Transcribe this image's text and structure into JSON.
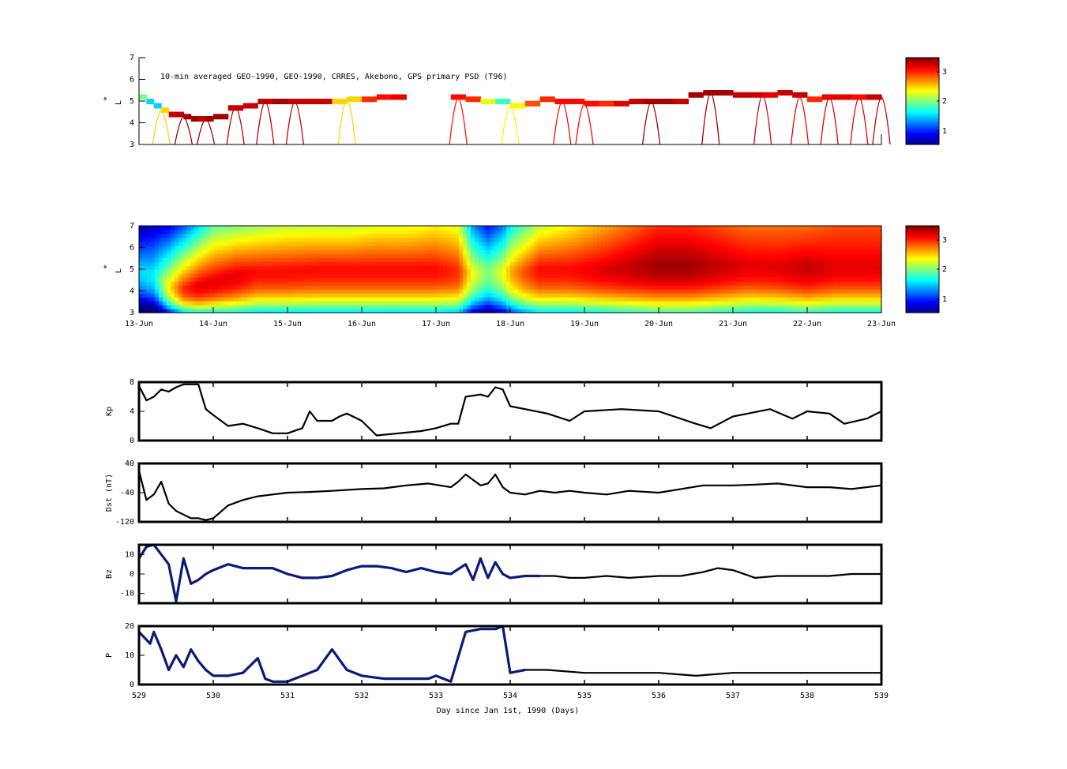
{
  "figure": {
    "title": "10-min averaged GEO-1990, GEO-1990, CRRES, Akebono, GPS  primary PSD (T96)",
    "xlabel": "Day since Jan 1st, 1990 (Days)",
    "date_ticks": [
      "13-Jun",
      "14-Jun",
      "15-Jun",
      "16-Jun",
      "17-Jun",
      "18-Jun",
      "19-Jun",
      "20-Jun",
      "21-Jun",
      "22-Jun",
      "23-Jun"
    ],
    "day_ticks": [
      "529",
      "530",
      "531",
      "532",
      "533",
      "534",
      "535",
      "536",
      "537",
      "538",
      "539"
    ],
    "colorbar_ticks": [
      "1",
      "2",
      "3"
    ],
    "colors": {
      "line": "#000000",
      "measured": "#0a1a7a"
    }
  },
  "chart_data": [
    {
      "type": "heatmap",
      "name": "observed-psd",
      "ylabel": "L*",
      "ylabel_parts": [
        "*",
        "L"
      ],
      "ylim": [
        3,
        7
      ],
      "yticks": [
        "3",
        "4",
        "5",
        "6",
        "7"
      ],
      "x": [
        529,
        539
      ],
      "colorbar_range": [
        0.5,
        3.5
      ],
      "observed_track": {
        "day": [
          529.0,
          529.1,
          529.2,
          529.3,
          529.4,
          529.5,
          529.6,
          529.7,
          529.8,
          529.9,
          530.0,
          530.2,
          530.4,
          530.6,
          530.8,
          531.0,
          531.2,
          531.4,
          531.6,
          531.8,
          532.0,
          532.2,
          532.4,
          532.6,
          532.8,
          533.0,
          533.2,
          533.4,
          533.6,
          533.8,
          534.0,
          534.2,
          534.4,
          534.6,
          534.8,
          535.0,
          535.2,
          535.4,
          535.6,
          535.8,
          536.0,
          536.2,
          536.4,
          536.6,
          536.8,
          537.0,
          537.2,
          537.4,
          537.6,
          537.8,
          538.0,
          538.2,
          538.4,
          538.6,
          538.8,
          539.0
        ],
        "lstar": [
          5.2,
          5.0,
          4.8,
          4.6,
          4.4,
          4.4,
          4.3,
          4.2,
          4.2,
          4.2,
          4.3,
          4.7,
          4.8,
          5.0,
          5.0,
          5.0,
          5.0,
          5.0,
          5.0,
          5.1,
          5.1,
          5.2,
          5.2,
          null,
          null,
          null,
          5.2,
          5.1,
          5.0,
          5.0,
          4.8,
          4.9,
          5.1,
          5.0,
          5.0,
          4.9,
          4.9,
          4.9,
          5.0,
          5.0,
          5.0,
          5.0,
          5.3,
          5.4,
          5.4,
          5.3,
          5.3,
          5.3,
          5.4,
          5.3,
          5.1,
          5.2,
          5.2,
          5.2,
          5.2,
          5.2
        ],
        "psd": [
          2.0,
          1.5,
          1.5,
          2.5,
          3.3,
          3.3,
          3.4,
          3.4,
          3.3,
          3.4,
          3.4,
          3.3,
          3.3,
          3.3,
          3.4,
          3.3,
          3.3,
          3.3,
          2.5,
          2.5,
          3.0,
          3.1,
          3.2,
          null,
          null,
          null,
          3.1,
          3.0,
          2.3,
          1.8,
          2.4,
          2.9,
          3.0,
          3.1,
          3.1,
          3.1,
          3.0,
          3.2,
          3.3,
          3.4,
          3.4,
          3.3,
          3.4,
          3.4,
          3.4,
          3.3,
          3.3,
          3.2,
          3.3,
          3.3,
          3.0,
          3.2,
          3.2,
          3.1,
          3.3,
          3.3
        ]
      },
      "pass_days": [
        529.3,
        529.6,
        529.9,
        530.3,
        530.7,
        531.1,
        531.8,
        533.3,
        534.0,
        534.7,
        535.0,
        535.9,
        536.7,
        537.4,
        537.9,
        538.3,
        538.7,
        539.0
      ]
    },
    {
      "type": "heatmap",
      "name": "reanalysis-psd",
      "ylabel": "L*",
      "ylabel_parts": [
        "*",
        "L"
      ],
      "ylim": [
        3,
        7
      ],
      "yticks": [
        "3",
        "4",
        "5",
        "6",
        "7"
      ],
      "x": [
        529,
        539
      ],
      "colorbar_range": [
        0.5,
        3.5
      ],
      "time_profile": {
        "day": [
          529.0,
          529.2,
          529.4,
          529.6,
          529.8,
          530.0,
          530.3,
          530.6,
          531.0,
          531.4,
          531.8,
          532.2,
          532.6,
          533.0,
          533.3,
          533.5,
          533.7,
          533.9,
          534.0,
          534.2,
          534.4,
          534.8,
          535.2,
          535.6,
          536.0,
          536.4,
          536.8,
          537.2,
          537.6,
          538.0,
          538.4,
          538.8,
          539.0
        ],
        "peak": [
          1.5,
          1.6,
          2.4,
          3.0,
          3.2,
          3.2,
          3.2,
          3.1,
          3.1,
          3.1,
          3.1,
          3.1,
          3.1,
          3.1,
          3.0,
          2.3,
          2.0,
          2.3,
          2.6,
          2.9,
          3.1,
          3.1,
          3.2,
          3.3,
          3.4,
          3.4,
          3.3,
          3.2,
          3.2,
          3.3,
          3.2,
          3.2,
          3.2
        ],
        "peak_lstar": [
          5.0,
          4.8,
          4.3,
          4.2,
          4.3,
          4.5,
          4.8,
          5.0,
          5.0,
          5.1,
          5.1,
          5.1,
          5.1,
          5.1,
          5.0,
          4.9,
          5.0,
          5.0,
          5.0,
          5.0,
          5.1,
          5.1,
          5.1,
          5.2,
          5.3,
          5.3,
          5.3,
          5.3,
          5.2,
          5.2,
          5.2,
          5.2,
          5.2
        ],
        "outer": [
          0.6,
          0.7,
          0.8,
          1.1,
          1.5,
          1.9,
          2.0,
          2.1,
          2.2,
          2.2,
          2.2,
          2.3,
          2.3,
          2.4,
          2.3,
          1.3,
          0.9,
          1.2,
          1.6,
          1.9,
          2.2,
          2.4,
          2.6,
          2.8,
          3.0,
          3.0,
          2.9,
          2.8,
          2.8,
          2.8,
          2.9,
          2.9,
          2.9
        ]
      }
    },
    {
      "type": "line",
      "name": "Kp",
      "ylabel": "Kp",
      "ylim": [
        0,
        8
      ],
      "yticks": [
        "0",
        "4",
        "8"
      ],
      "x": [
        529.0,
        529.1,
        529.2,
        529.3,
        529.4,
        529.5,
        529.6,
        529.7,
        529.8,
        529.9,
        530.0,
        530.2,
        530.4,
        530.6,
        530.8,
        531.0,
        531.2,
        531.3,
        531.4,
        531.6,
        531.7,
        531.8,
        532.0,
        532.2,
        532.5,
        532.8,
        533.0,
        533.2,
        533.3,
        533.4,
        533.6,
        533.7,
        533.8,
        533.9,
        534.0,
        534.2,
        534.5,
        534.8,
        535.0,
        535.5,
        536.0,
        536.5,
        536.7,
        537.0,
        537.2,
        537.5,
        537.8,
        538.0,
        538.3,
        538.5,
        538.8,
        539.0
      ],
      "y": [
        7.5,
        5.5,
        6.0,
        7.0,
        6.7,
        7.3,
        7.7,
        7.7,
        7.7,
        4.3,
        3.5,
        2.0,
        2.3,
        1.7,
        1.0,
        1.0,
        1.7,
        4.0,
        2.7,
        2.7,
        3.3,
        3.7,
        2.7,
        0.7,
        1.0,
        1.3,
        1.7,
        2.3,
        2.3,
        6.0,
        6.3,
        6.0,
        7.3,
        7.0,
        4.7,
        4.3,
        3.7,
        2.7,
        4.0,
        4.3,
        4.0,
        2.3,
        1.7,
        3.3,
        3.7,
        4.3,
        3.0,
        4.0,
        3.7,
        2.3,
        3.0,
        4.0
      ]
    },
    {
      "type": "line",
      "name": "Dst",
      "ylabel": "Dst (nT)",
      "ylim": [
        -120,
        40
      ],
      "yticks": [
        "-120",
        "-40",
        "40"
      ],
      "x": [
        529.0,
        529.1,
        529.2,
        529.3,
        529.4,
        529.5,
        529.6,
        529.7,
        529.8,
        529.9,
        530.0,
        530.2,
        530.4,
        530.6,
        530.8,
        531.0,
        531.3,
        531.6,
        532.0,
        532.3,
        532.6,
        532.9,
        533.2,
        533.3,
        533.4,
        533.6,
        533.7,
        533.8,
        533.9,
        534.0,
        534.2,
        534.4,
        534.6,
        534.8,
        535.0,
        535.3,
        535.6,
        536.0,
        536.3,
        536.6,
        537.0,
        537.3,
        537.6,
        538.0,
        538.3,
        538.6,
        539.0
      ],
      "y": [
        20,
        -60,
        -45,
        -10,
        -70,
        -90,
        -100,
        -110,
        -110,
        -115,
        -110,
        -75,
        -60,
        -50,
        -45,
        -40,
        -38,
        -35,
        -30,
        -28,
        -20,
        -15,
        -25,
        -10,
        10,
        -20,
        -15,
        10,
        -25,
        -40,
        -45,
        -35,
        -40,
        -35,
        -40,
        -45,
        -35,
        -40,
        -30,
        -20,
        -20,
        -18,
        -15,
        -25,
        -25,
        -30,
        -20
      ]
    },
    {
      "type": "line",
      "name": "Bz",
      "ylabel": "Bz",
      "ylim": [
        -15,
        15
      ],
      "yticks": [
        "-10",
        "0",
        "10"
      ],
      "x": [
        529.0,
        529.1,
        529.2,
        529.3,
        529.4,
        529.5,
        529.6,
        529.7,
        529.8,
        529.9,
        530.0,
        530.2,
        530.4,
        530.6,
        530.8,
        531.0,
        531.2,
        531.4,
        531.6,
        531.8,
        532.0,
        532.2,
        532.4,
        532.6,
        532.8,
        533.0,
        533.2,
        533.4,
        533.5,
        533.6,
        533.7,
        533.8,
        533.9,
        534.0,
        534.2,
        534.4,
        534.6,
        534.8,
        535.0,
        535.3,
        535.6,
        536.0,
        536.3,
        536.6,
        536.8,
        537.0,
        537.3,
        537.6,
        538.0,
        538.3,
        538.6,
        539.0
      ],
      "y": [
        8,
        14,
        15,
        10,
        5,
        -14,
        8,
        -5,
        -3,
        0,
        2,
        5,
        3,
        3,
        3,
        0,
        -2,
        -2,
        -1,
        2,
        4,
        4,
        3,
        1,
        3,
        1,
        0,
        5,
        -3,
        8,
        -2,
        6,
        0,
        -2,
        -1,
        -1,
        -1,
        -2,
        -2,
        -1,
        -2,
        -1,
        -1,
        1,
        3,
        2,
        -2,
        -1,
        -1,
        -1,
        0,
        0
      ],
      "measured_until": 534.4
    },
    {
      "type": "line",
      "name": "P",
      "ylabel": "P",
      "ylim": [
        0,
        20
      ],
      "yticks": [
        "0",
        "10",
        "20"
      ],
      "x": [
        529.0,
        529.15,
        529.2,
        529.3,
        529.4,
        529.5,
        529.6,
        529.7,
        529.8,
        529.9,
        530.0,
        530.2,
        530.4,
        530.6,
        530.7,
        530.8,
        531.0,
        531.2,
        531.4,
        531.6,
        531.8,
        532.0,
        532.3,
        532.6,
        532.9,
        533.0,
        533.2,
        533.4,
        533.6,
        533.8,
        533.9,
        534.0,
        534.2,
        534.5,
        535.0,
        535.5,
        536.0,
        536.5,
        537.0,
        537.5,
        538.0,
        538.5,
        539.0
      ],
      "y": [
        18,
        14,
        18,
        12,
        5,
        10,
        6,
        12,
        8,
        5,
        3,
        3,
        4,
        9,
        2,
        1,
        1,
        3,
        5,
        12,
        5,
        3,
        2,
        2,
        2,
        3,
        1,
        18,
        19,
        19,
        20,
        4,
        5,
        5,
        4,
        4,
        4,
        3,
        4,
        4,
        4,
        4,
        4
      ],
      "measured_until": 534.4
    }
  ]
}
